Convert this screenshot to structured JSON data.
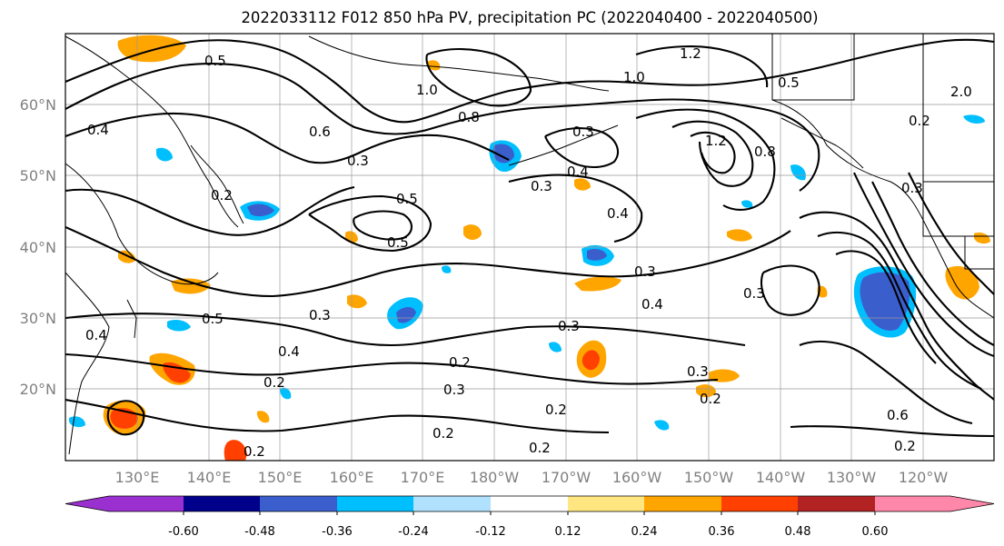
{
  "title": "2022033112 F012 850 hPa PV, precipitation PC (2022040400 - 2022040500)",
  "lat_labels": [
    "60°N",
    "50°N",
    "40°N",
    "30°N",
    "20°N"
  ],
  "lon_labels": [
    "130°E",
    "140°E",
    "150°E",
    "160°E",
    "170°E",
    "180°W",
    "170°W",
    "160°W",
    "150°W",
    "140°W",
    "130°W",
    "120°W"
  ],
  "colorbar": {
    "colors": [
      "#9b30d0",
      "#00008b",
      "#3a5fcd",
      "#00bfff",
      "#b0e2ff",
      "#ffffff",
      "#ffe680",
      "#ffa500",
      "#ff4000",
      "#b22222",
      "#ff88aa"
    ],
    "tick_labels": [
      "-0.60",
      "-0.48",
      "-0.36",
      "-0.24",
      "-0.12",
      "0.12",
      "0.24",
      "0.36",
      "0.48",
      "0.60"
    ]
  },
  "contour_labels": [
    "0.5",
    "1.0",
    "1.2",
    "1.0",
    "0.5",
    "2.0",
    "0.2",
    "0.8",
    "0.3",
    "0.6",
    "1.2",
    "0.8",
    "0.3",
    "0.4",
    "0.3",
    "0.4",
    "0.2",
    "0.5",
    "0.3",
    "0.5",
    "0.3",
    "0.4",
    "0.3",
    "0.3",
    "0.5",
    "0.4",
    "0.2",
    "0.3",
    "0.2",
    "0.3",
    "0.2",
    "0.2",
    "0.6",
    "0.2",
    "0.2",
    "0.3",
    "0.2",
    "0.4",
    "0.4",
    "0.2"
  ]
}
